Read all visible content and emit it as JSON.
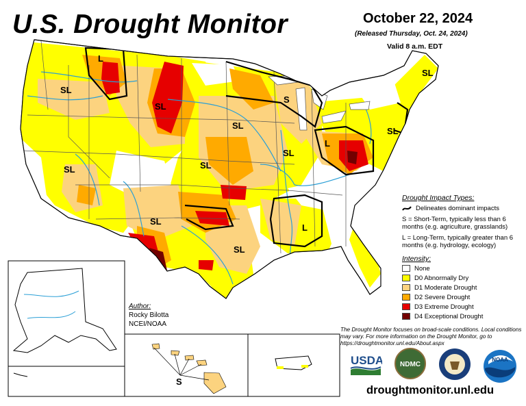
{
  "header": {
    "title": "U.S. Drought Monitor",
    "date": "October 22, 2024",
    "released": "(Released Thursday, Oct. 24, 2024)",
    "valid": "Valid 8 a.m. EDT"
  },
  "impact_types": {
    "heading": "Drought Impact Types:",
    "delineates": "Delineates dominant impacts",
    "short_term_def": "S = Short-Term, typically less than 6 months (e.g. agriculture, grasslands)",
    "long_term_def": "L = Long-Term, typically greater than 6 months (e.g. hydrology, ecology)"
  },
  "intensity": {
    "heading": "Intensity:",
    "levels": [
      {
        "label": "None",
        "color": "#ffffff"
      },
      {
        "label": "D0 Abnormally Dry",
        "color": "#ffff00"
      },
      {
        "label": "D1 Moderate Drought",
        "color": "#fcd37f"
      },
      {
        "label": "D2 Severe Drought",
        "color": "#ffaa00"
      },
      {
        "label": "D3 Extreme Drought",
        "color": "#e60000"
      },
      {
        "label": "D4 Exceptional Drought",
        "color": "#730000"
      }
    ]
  },
  "map_labels": {
    "sl": "SL",
    "l": "L",
    "s": "S"
  },
  "author": {
    "heading": "Author:",
    "name": "Rocky Bilotta",
    "org": "NCEI/NOAA"
  },
  "note": "The Drought Monitor focuses on broad-scale conditions. Local conditions may vary. For more information on the Drought Monitor, go to https://droughtmonitor.unl.edu/About.aspx",
  "logos": {
    "usda": "USDA",
    "ndmc": "NDMC",
    "noaa": "NOAA"
  },
  "url": "droughtmonitor.unl.edu",
  "colors": {
    "water": "#2a9fd6",
    "border": "#000000"
  }
}
